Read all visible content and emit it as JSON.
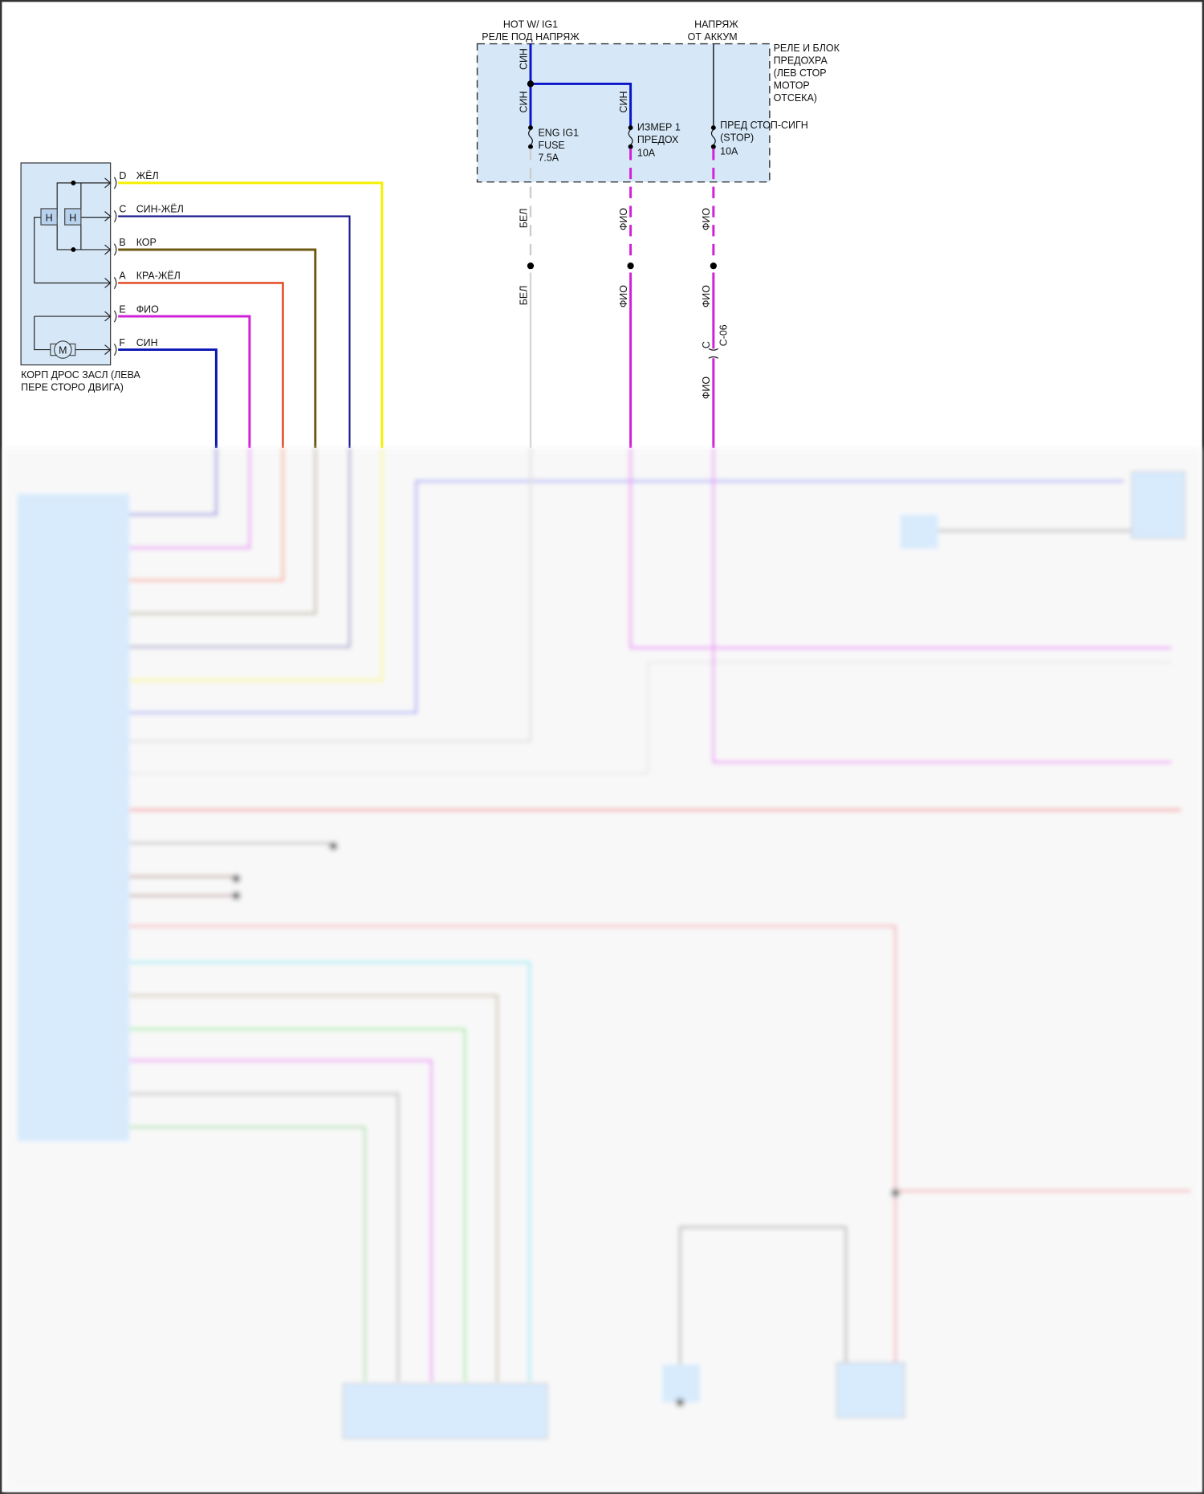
{
  "fuse_box": {
    "source_left": [
      "HOT W/ IG1",
      "РЕЛЕ ПОД НАПРЯЖ"
    ],
    "source_right": [
      "НАПРЯЖ",
      "ОТ АККУМ"
    ],
    "name": [
      "РЕЛЕ И БЛОК",
      "ПРЕДОХРА",
      "(ЛЕВ СТОР",
      "МОТОР",
      "ОТСЕКА)"
    ],
    "fuses": [
      {
        "lines": [
          "ENG IG1",
          "FUSE",
          "7.5A"
        ]
      },
      {
        "lines": [
          "ИЗМЕР 1",
          "ПРЕДОХ",
          "10A"
        ]
      },
      {
        "lines": [
          "ПРЕД СТОП-СИГН",
          "(STOP)",
          "10A"
        ]
      }
    ],
    "wire_labels": {
      "blue": "СИН",
      "white": "БЕЛ",
      "violet": "ФИО"
    },
    "connector": {
      "pin": "C",
      "name": "C-06"
    }
  },
  "throttle_body": {
    "name": [
      "КОРП ДРОС ЗАСЛ (ЛЕВА",
      "ПЕРЕ СТОРО ДВИГА)"
    ],
    "heater_label": "H",
    "motor_label": "M",
    "pins": [
      {
        "pin": "D",
        "wire": "ЖЁЛ",
        "color": "#f5f000"
      },
      {
        "pin": "C",
        "wire": "СИН-ЖЁЛ",
        "color": "#1a1a8c"
      },
      {
        "pin": "B",
        "wire": "КОР",
        "color": "#6b5a10"
      },
      {
        "pin": "A",
        "wire": "КРА-ЖЁЛ",
        "color": "#e0401a"
      },
      {
        "pin": "E",
        "wire": "ФИО",
        "color": "#d020d8"
      },
      {
        "pin": "F",
        "wire": "СИН",
        "color": "#0a14b4"
      }
    ]
  },
  "colors": {
    "component_fill": "#d6e8f8",
    "blue": "#0a14c8",
    "violet": "#d020d8",
    "white_wire": "#cccccc"
  },
  "lower_section_blurred": true
}
